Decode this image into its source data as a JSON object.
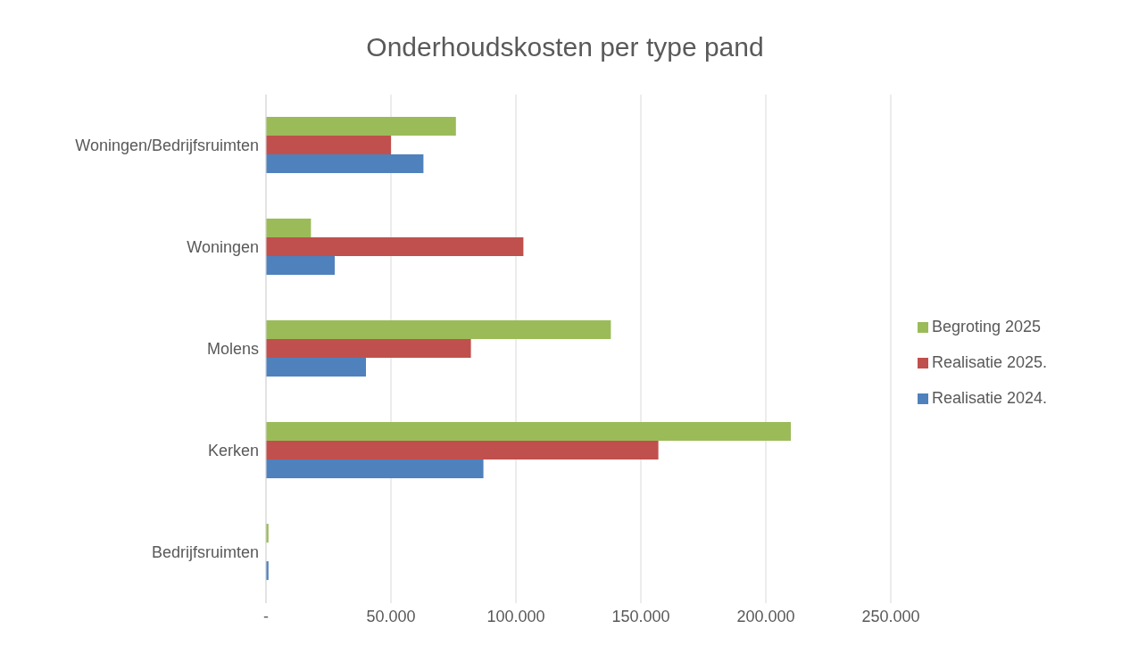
{
  "chart_data": {
    "type": "bar",
    "orientation": "horizontal",
    "title": "Onderhoudskosten per type pand",
    "categories": [
      "Woningen/Bedrijfsruimten",
      "Woningen",
      "Molens",
      "Kerken",
      "Bedrijfsruimten"
    ],
    "series": [
      {
        "name": "Begroting 2025",
        "color": "#9bbb59",
        "values": [
          76000,
          18000,
          138000,
          210000,
          1000
        ]
      },
      {
        "name": "Realisatie 2025.",
        "color": "#c0504d",
        "values": [
          50000,
          103000,
          82000,
          157000,
          null
        ]
      },
      {
        "name": "Realisatie 2024.",
        "color": "#4f81bd",
        "values": [
          63000,
          27500,
          40000,
          87000,
          1000
        ]
      }
    ],
    "xlim": [
      0,
      250000
    ],
    "xticks": [
      {
        "value": 0,
        "label": "-"
      },
      {
        "value": 50000,
        "label": "50.000"
      },
      {
        "value": 100000,
        "label": "100.000"
      },
      {
        "value": 150000,
        "label": "150.000"
      },
      {
        "value": 200000,
        "label": "200.000"
      },
      {
        "value": 250000,
        "label": "250.000"
      }
    ],
    "grid": "x",
    "legend": "right"
  }
}
